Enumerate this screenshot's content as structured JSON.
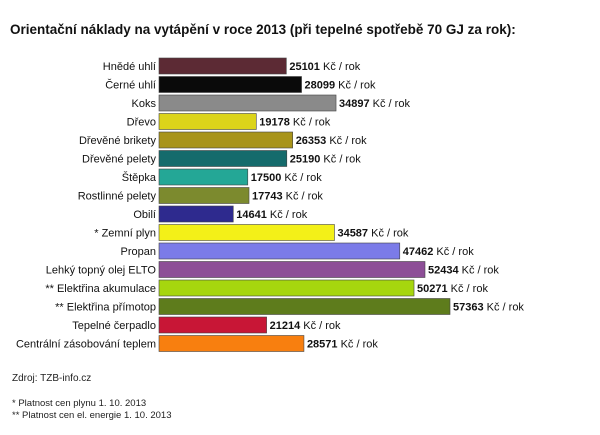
{
  "chart_data": {
    "type": "bar",
    "orientation": "horizontal",
    "title": "Orientační náklady na vytápění v roce 2013 (při tepelné spotřebě 70 GJ za rok):",
    "unit": "Kč / rok",
    "categories": [
      {
        "label": "Hnědé uhlí",
        "prefix": "",
        "value": 25101,
        "color": "#5c2a34"
      },
      {
        "label": "Černé uhlí",
        "prefix": "",
        "value": 28099,
        "color": "#0a0a0a"
      },
      {
        "label": "Koks",
        "prefix": "",
        "value": 34897,
        "color": "#8a8a8a"
      },
      {
        "label": "Dřevo",
        "prefix": "",
        "value": 19178,
        "color": "#dcd41a"
      },
      {
        "label": "Dřevěné brikety",
        "prefix": "",
        "value": 26353,
        "color": "#a8941a"
      },
      {
        "label": "Dřevěné pelety",
        "prefix": "",
        "value": 25190,
        "color": "#156b6c"
      },
      {
        "label": "Štěpka",
        "prefix": "",
        "value": 17500,
        "color": "#24a796"
      },
      {
        "label": "Rostlinné pelety",
        "prefix": "",
        "value": 17743,
        "color": "#7c8a2e"
      },
      {
        "label": "Obilí",
        "prefix": "",
        "value": 14641,
        "color": "#2e2a8e"
      },
      {
        "label": "Zemní plyn",
        "prefix": "*",
        "value": 34587,
        "color": "#f3f018"
      },
      {
        "label": "Propan",
        "prefix": "",
        "value": 47462,
        "color": "#7b7be8"
      },
      {
        "label": "Lehký topný olej ELTO",
        "prefix": "",
        "value": 52434,
        "color": "#8d4e97"
      },
      {
        "label": "Elektřina akumulace",
        "prefix": "**",
        "value": 50271,
        "color": "#a6d60e"
      },
      {
        "label": "Elektřina přímotop",
        "prefix": "**",
        "value": 57363,
        "color": "#5e7c1c"
      },
      {
        "label": "Tepelné čerpadlo",
        "prefix": "",
        "value": 21214,
        "color": "#c81636"
      },
      {
        "label": "Centrální zásobování teplem",
        "prefix": "",
        "value": 28571,
        "color": "#f87f0f"
      }
    ],
    "xlim": [
      0,
      57363
    ],
    "grid": false,
    "legend": "none"
  },
  "source": "Zdroj: TZB-info.cz",
  "notes": [
    "* Platnost cen plynu 1. 10. 2013",
    "** Platnost cen el. energie 1. 10. 2013"
  ]
}
